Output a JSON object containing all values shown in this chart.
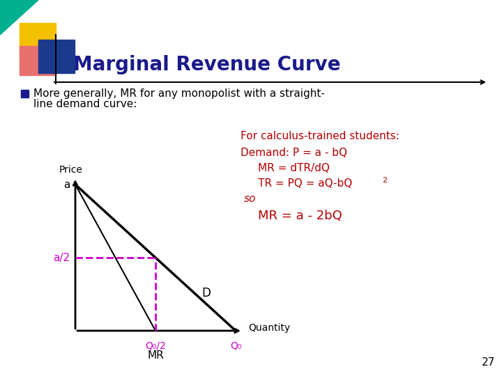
{
  "title": "Marginal Revenue Curve",
  "title_color": "#1a1a8c",
  "title_fontsize": 20,
  "bg_color": "#ffffff",
  "bullet_text_line1": "More generally, MR for any monopolist with a straight-",
  "bullet_text_line2": "line demand curve:",
  "bullet_marker_color": "#1a1a8c",
  "price_label": "Price",
  "quantity_label": "Quantity",
  "a_label": "a",
  "a2_label": "a/2",
  "q0_label": "Q₀",
  "q02_label": "Q₀/2",
  "mr_label": "MR",
  "d_label": "D",
  "so_label": "so",
  "calculus_line1": "For calculus-trained students:",
  "calculus_line2": "Demand: P = a - bQ",
  "calculus_line3": "MR = dTR/dQ",
  "calculus_line4": "TR = PQ = aQ-bQ",
  "calculus_line4_super": "2",
  "calculus_line5": "MR = a - 2bQ",
  "red_color": "#b30000",
  "magenta_color": "#cc00cc",
  "slide_num": "27",
  "gold_color": "#f5c000",
  "blue_color": "#1a3a8c",
  "pink_color": "#e87070",
  "teal_color": "#00b090"
}
